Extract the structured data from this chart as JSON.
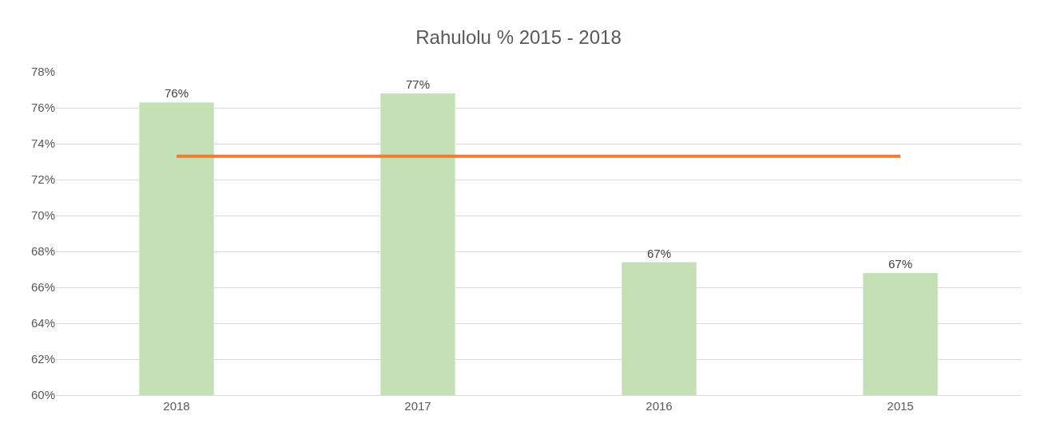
{
  "chart_data": {
    "type": "bar",
    "title": "Rahulolu % 2015 - 2018",
    "categories": [
      "2018",
      "2017",
      "2016",
      "2015"
    ],
    "series": [
      {
        "colors": [
          "#c5e0b4",
          "#c5e0b4",
          "#c5e0b4",
          "#c5e0b4"
        ],
        "values": [
          76.3,
          76.8,
          67.4,
          66.8
        ],
        "value_labels": [
          "76%",
          "77%",
          "67%",
          "67%"
        ]
      },
      {
        "type": "line",
        "color": "#ed7d31",
        "values": [
          73.3,
          73.3,
          73.3,
          73.3
        ]
      }
    ],
    "ylim": [
      60,
      78
    ],
    "yticks": [
      {
        "value": 60,
        "label": "60%"
      },
      {
        "value": 62,
        "label": "62%"
      },
      {
        "value": 64,
        "label": "64%"
      },
      {
        "value": 66,
        "label": "66%"
      },
      {
        "value": 68,
        "label": "68%"
      },
      {
        "value": 70,
        "label": "70%"
      },
      {
        "value": 72,
        "label": "72%"
      },
      {
        "value": 74,
        "label": "74%"
      },
      {
        "value": 76,
        "label": "76%"
      },
      {
        "value": 78,
        "label": "78%"
      }
    ],
    "grid": "y",
    "marker": "none",
    "line_style": "solid"
  }
}
